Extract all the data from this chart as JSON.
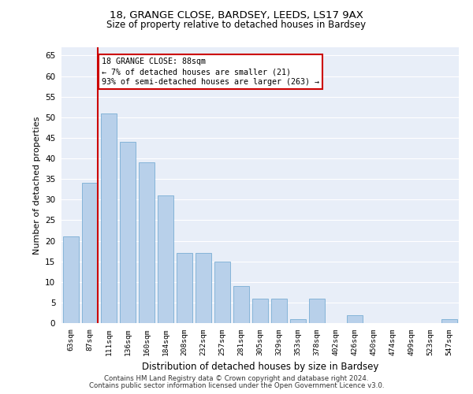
{
  "title1": "18, GRANGE CLOSE, BARDSEY, LEEDS, LS17 9AX",
  "title2": "Size of property relative to detached houses in Bardsey",
  "xlabel": "Distribution of detached houses by size in Bardsey",
  "ylabel": "Number of detached properties",
  "categories": [
    "63sqm",
    "87sqm",
    "111sqm",
    "136sqm",
    "160sqm",
    "184sqm",
    "208sqm",
    "232sqm",
    "257sqm",
    "281sqm",
    "305sqm",
    "329sqm",
    "353sqm",
    "378sqm",
    "402sqm",
    "426sqm",
    "450sqm",
    "474sqm",
    "499sqm",
    "523sqm",
    "547sqm"
  ],
  "values": [
    21,
    34,
    51,
    44,
    39,
    31,
    17,
    17,
    15,
    9,
    6,
    6,
    1,
    6,
    0,
    2,
    0,
    0,
    0,
    0,
    1
  ],
  "bar_color": "#b8d0ea",
  "bar_edge_color": "#7aaed4",
  "ylim": [
    0,
    67
  ],
  "yticks": [
    0,
    5,
    10,
    15,
    20,
    25,
    30,
    35,
    40,
    45,
    50,
    55,
    60,
    65
  ],
  "vline_color": "#cc0000",
  "annotation_text": "18 GRANGE CLOSE: 88sqm\n← 7% of detached houses are smaller (21)\n93% of semi-detached houses are larger (263) →",
  "annotation_box_color": "#ffffff",
  "annotation_box_edge": "#cc0000",
  "bg_color": "#e8eef8",
  "grid_color": "#ffffff",
  "footer1": "Contains HM Land Registry data © Crown copyright and database right 2024.",
  "footer2": "Contains public sector information licensed under the Open Government Licence v3.0."
}
